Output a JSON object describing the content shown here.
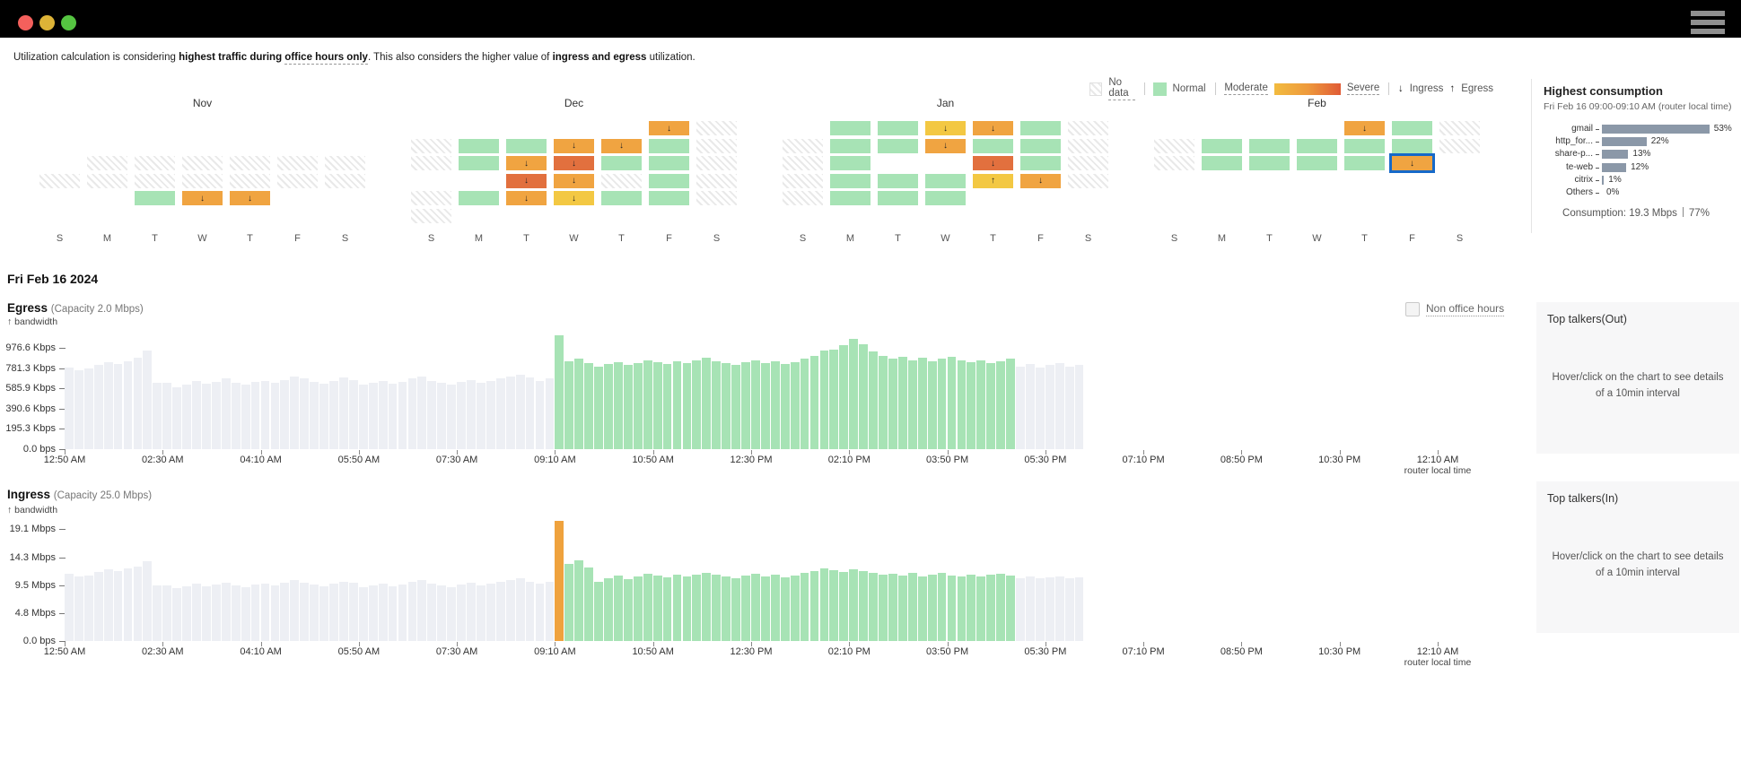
{
  "window": {
    "controls": [
      "close",
      "minimize",
      "zoom"
    ],
    "menu": "hamburger"
  },
  "note": {
    "prefix": "Utilization calculation is considering ",
    "bold_prefix": "highest traffic during ",
    "bold_underlined": "office hours only",
    "middle": ". This also considers the higher value of ",
    "bold2": "ingress and egress",
    "suffix": " utilization."
  },
  "legend": {
    "no_data": "No data",
    "normal": "Normal",
    "moderate": "Moderate",
    "severe": "Severe",
    "ingress_arrow": "↓",
    "ingress": "Ingress",
    "egress_arrow": "↑",
    "egress": "Egress"
  },
  "colors": {
    "normal": "#a7e3b5",
    "moderate_low": "#f3c843",
    "moderate": "#f0a441",
    "severe": "#e2703e",
    "selected_border": "#1669c9",
    "bar_gray": "#edeff4",
    "bar_green": "#a7e3b5",
    "bar_orange": "#efa23d",
    "hc_bar": "#8b98a8"
  },
  "calendar": {
    "day_labels": [
      "S",
      "M",
      "T",
      "W",
      "T",
      "F",
      "S"
    ],
    "months": [
      {
        "name": "Nov",
        "grid": [
          [
            "",
            "",
            "",
            "",
            "",
            "",
            ""
          ],
          [
            "",
            "",
            "",
            "",
            "",
            "",
            ""
          ],
          [
            "",
            "x",
            "x",
            "x",
            "x",
            "x",
            "x"
          ],
          [
            "x",
            "x",
            "x",
            "x",
            "x",
            "x",
            "x"
          ],
          [
            "",
            "",
            "g",
            "od",
            "od",
            "",
            ""
          ],
          [
            "",
            "",
            "",
            "",
            "",
            "",
            ""
          ]
        ]
      },
      {
        "name": "Dec",
        "grid": [
          [
            "",
            "",
            "",
            "",
            "",
            "od",
            "x"
          ],
          [
            "x",
            "g",
            "g",
            "od",
            "od",
            "g",
            "x"
          ],
          [
            "x",
            "g",
            "od",
            "rd",
            "g",
            "g",
            "x"
          ],
          [
            "",
            "",
            "rd",
            "od",
            "x",
            "g",
            "x"
          ],
          [
            "x",
            "g",
            "od",
            "yd",
            "g",
            "g",
            "x"
          ],
          [
            "x",
            "",
            "",
            "",
            "",
            "",
            ""
          ]
        ]
      },
      {
        "name": "Jan",
        "grid": [
          [
            "",
            "g",
            "g",
            "yd",
            "od",
            "g",
            "x"
          ],
          [
            "x",
            "g",
            "g",
            "od",
            "g",
            "g",
            "x"
          ],
          [
            "x",
            "g",
            "",
            "",
            "rd",
            "g",
            "x"
          ],
          [
            "x",
            "g",
            "g",
            "g",
            "yu",
            "od",
            "x"
          ],
          [
            "x",
            "g",
            "g",
            "g",
            "",
            "",
            ""
          ],
          [
            "",
            "",
            "",
            "",
            "",
            "",
            ""
          ]
        ]
      },
      {
        "name": "Feb",
        "grid": [
          [
            "",
            "",
            "",
            "",
            "od",
            "g",
            "x"
          ],
          [
            "x",
            "g",
            "g",
            "g",
            "g",
            "g",
            "x"
          ],
          [
            "x",
            "g",
            "g",
            "g",
            "g",
            "od!",
            ""
          ],
          [
            "",
            "",
            "",
            "",
            "",
            "",
            ""
          ],
          [
            "",
            "",
            "",
            "",
            "",
            "",
            ""
          ],
          [
            "",
            "",
            "",
            "",
            "",
            "",
            ""
          ]
        ]
      }
    ]
  },
  "date_heading": "Fri Feb 16 2024",
  "non_office_hours_label": "Non office hours",
  "top_talkers_out": {
    "title": "Top talkers(Out)",
    "message": "Hover/click on the chart to see details of a 10min interval"
  },
  "top_talkers_in": {
    "title": "Top talkers(In)",
    "message": "Hover/click on the chart to see details of a 10min interval"
  },
  "chart_data": [
    {
      "type": "bar",
      "id": "egress",
      "title": "Egress",
      "capacity_label": "(Capacity 2.0 Mbps)",
      "bandwidth_label": "↑ bandwidth",
      "unit": "Kbps",
      "interval_minutes": 10,
      "ylim": [
        0,
        1150
      ],
      "y_ticks": [
        {
          "label": "976.6 Kbps",
          "value": 976.6
        },
        {
          "label": "781.3 Kbps",
          "value": 781.3
        },
        {
          "label": "585.9 Kbps",
          "value": 585.9
        },
        {
          "label": "390.6 Kbps",
          "value": 390.6
        },
        {
          "label": "195.3 Kbps",
          "value": 195.3
        },
        {
          "label": "0.0 bps",
          "value": 0
        }
      ],
      "x_ticks": [
        "12:50 AM",
        "02:30 AM",
        "04:10 AM",
        "05:50 AM",
        "07:30 AM",
        "09:10 AM",
        "10:50 AM",
        "12:30 PM",
        "02:10 PM",
        "03:50 PM",
        "05:30 PM",
        "07:10 PM",
        "08:50 PM",
        "10:30 PM",
        "12:10 AM"
      ],
      "x_axis_note": "router local time",
      "total_slots": 140,
      "values": [
        790,
        760,
        780,
        810,
        840,
        820,
        850,
        880,
        955,
        640,
        640,
        600,
        620,
        660,
        630,
        650,
        680,
        640,
        620,
        650,
        660,
        640,
        670,
        700,
        680,
        650,
        630,
        660,
        690,
        670,
        620,
        640,
        660,
        630,
        650,
        680,
        700,
        660,
        640,
        620,
        650,
        670,
        640,
        660,
        680,
        700,
        720,
        690,
        660,
        680,
        1100,
        850,
        870,
        830,
        800,
        820,
        840,
        810,
        830,
        860,
        840,
        820,
        850,
        830,
        860,
        880,
        850,
        830,
        810,
        840,
        860,
        830,
        850,
        820,
        840,
        870,
        900,
        950,
        960,
        1000,
        1060,
        1010,
        940,
        900,
        870,
        890,
        860,
        880,
        850,
        870,
        890,
        860,
        840,
        860,
        830,
        850,
        870,
        800,
        820,
        790,
        810,
        830,
        800,
        810
      ],
      "color_ranges": [
        {
          "from": 0,
          "to": 49,
          "key": "bar_gray"
        },
        {
          "from": 50,
          "to": 96,
          "key": "bar_green"
        },
        {
          "from": 97,
          "to": 102,
          "key": "bar_gray"
        }
      ]
    },
    {
      "type": "bar",
      "id": "ingress",
      "title": "Ingress",
      "capacity_label": "(Capacity 25.0 Mbps)",
      "bandwidth_label": "↑ bandwidth",
      "unit": "Mbps",
      "interval_minutes": 10,
      "ylim": [
        0,
        21
      ],
      "y_ticks": [
        {
          "label": "19.1 Mbps",
          "value": 19.1
        },
        {
          "label": "14.3 Mbps",
          "value": 14.3
        },
        {
          "label": "9.5 Mbps",
          "value": 9.5
        },
        {
          "label": "4.8 Mbps",
          "value": 4.8
        },
        {
          "label": "0.0 bps",
          "value": 0
        }
      ],
      "x_ticks": [
        "12:50 AM",
        "02:30 AM",
        "04:10 AM",
        "05:50 AM",
        "07:30 AM",
        "09:10 AM",
        "10:50 AM",
        "12:30 PM",
        "02:10 PM",
        "03:50 PM",
        "05:30 PM",
        "07:10 PM",
        "08:50 PM",
        "10:30 PM",
        "12:10 AM"
      ],
      "x_axis_note": "router local time",
      "total_slots": 140,
      "values": [
        11.5,
        11.0,
        11.2,
        11.8,
        12.2,
        12.0,
        12.4,
        12.8,
        13.6,
        9.5,
        9.5,
        9.0,
        9.3,
        9.8,
        9.4,
        9.6,
        10.0,
        9.5,
        9.2,
        9.6,
        9.8,
        9.5,
        9.9,
        10.4,
        10.0,
        9.7,
        9.4,
        9.8,
        10.2,
        10.0,
        9.2,
        9.5,
        9.8,
        9.4,
        9.7,
        10.1,
        10.4,
        9.8,
        9.5,
        9.2,
        9.6,
        9.9,
        9.5,
        9.8,
        10.1,
        10.4,
        10.7,
        10.2,
        9.8,
        10.1,
        20.5,
        13.2,
        13.8,
        12.6,
        10.2,
        10.8,
        11.2,
        10.6,
        11.0,
        11.5,
        11.2,
        10.9,
        11.3,
        11.0,
        11.4,
        11.7,
        11.3,
        11.0,
        10.8,
        11.2,
        11.5,
        11.0,
        11.4,
        10.9,
        11.2,
        11.6,
        12.0,
        12.4,
        12.1,
        11.8,
        12.2,
        12.0,
        11.6,
        11.3,
        11.5,
        11.2,
        11.6,
        11.0,
        11.3,
        11.6,
        11.2,
        11.0,
        11.4,
        11.1,
        11.3,
        11.5,
        11.2,
        10.8,
        11.0,
        10.7,
        10.9,
        11.1,
        10.8,
        10.9
      ],
      "color_ranges": [
        {
          "from": 0,
          "to": 49,
          "key": "bar_gray"
        },
        {
          "from": 50,
          "to": 50,
          "key": "bar_orange"
        },
        {
          "from": 51,
          "to": 96,
          "key": "bar_green"
        },
        {
          "from": 97,
          "to": 102,
          "key": "bar_gray"
        }
      ]
    },
    {
      "type": "bar",
      "id": "highest_consumption",
      "orientation": "horizontal",
      "title": "Highest consumption",
      "subtitle": "Fri Feb 16 09:00-09:10 AM (router local time)",
      "categories": [
        "gmail",
        "http_for...",
        "share-p...",
        "te-web",
        "citrix",
        "Others"
      ],
      "values": [
        53,
        22,
        13,
        12,
        1,
        0
      ],
      "unit": "%",
      "footer_label": "Consumption: 19.3 Mbps",
      "footer_pct": "77%"
    }
  ]
}
